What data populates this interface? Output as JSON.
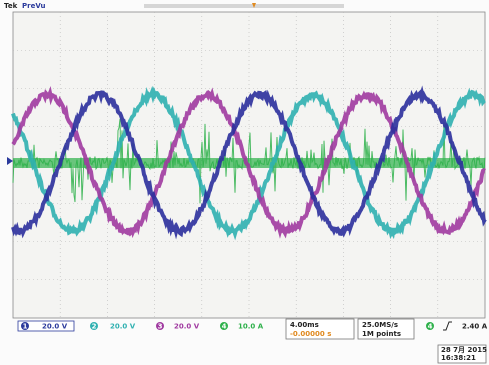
{
  "header": {
    "brand": "Tek",
    "mode": "PreVu"
  },
  "channels": [
    {
      "number": "1",
      "scale": "20.0 V"
    },
    {
      "number": "2",
      "scale": "20.0 V"
    },
    {
      "number": "3",
      "scale": "20.0 V"
    },
    {
      "number": "4",
      "scale": "10.0 A"
    }
  ],
  "timebase": {
    "scale": "4.00ms",
    "position": "-0.00000 s"
  },
  "acquisition": {
    "rate": "25.0MS/s",
    "length": "1M points"
  },
  "trigger": {
    "source": "4",
    "level": "2.40 A"
  },
  "timestamp": {
    "date": "28 7月 2015",
    "time": "16:38:21"
  }
}
